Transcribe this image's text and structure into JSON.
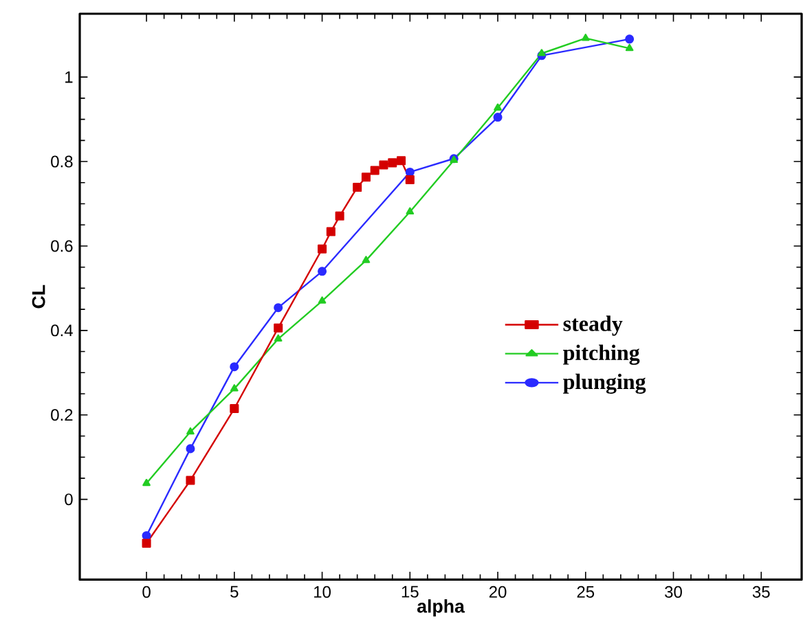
{
  "chart_data": {
    "type": "line",
    "xlabel": "alpha",
    "ylabel": "CL",
    "xlim": [
      -3.8,
      37.3
    ],
    "ylim": [
      -0.19,
      1.15
    ],
    "xticks": [
      0,
      5,
      10,
      15,
      20,
      25,
      30,
      35
    ],
    "yticks": [
      0,
      0.2,
      0.4,
      0.6,
      0.8,
      1
    ],
    "legend": "right",
    "grid": false,
    "line_style": "solid",
    "series": [
      {
        "name": "steady",
        "color": "#d40000",
        "marker": "square",
        "x": [
          0,
          2.5,
          5,
          7.5,
          10,
          10.5,
          11,
          12,
          12.5,
          13,
          13.5,
          14,
          14.5,
          15
        ],
        "values": [
          -0.104,
          0.045,
          0.215,
          0.406,
          0.593,
          0.634,
          0.671,
          0.739,
          0.763,
          0.779,
          0.792,
          0.797,
          0.802,
          0.757
        ]
      },
      {
        "name": "pitching",
        "color": "#22cc22",
        "marker": "triangle",
        "x": [
          0,
          2.5,
          5,
          7.5,
          10,
          12.5,
          15,
          17.5,
          20,
          22.5,
          25,
          27.5
        ],
        "values": [
          0.038,
          0.16,
          0.262,
          0.38,
          0.47,
          0.566,
          0.681,
          0.803,
          0.927,
          1.056,
          1.092,
          1.068
        ]
      },
      {
        "name": "plunging",
        "color": "#2a2aff",
        "marker": "circle",
        "x": [
          0,
          2.5,
          5,
          7.5,
          10,
          15,
          17.5,
          20,
          22.5,
          27.5
        ],
        "values": [
          -0.086,
          0.12,
          0.314,
          0.454,
          0.54,
          0.775,
          0.807,
          0.905,
          1.051,
          1.09
        ]
      }
    ]
  }
}
